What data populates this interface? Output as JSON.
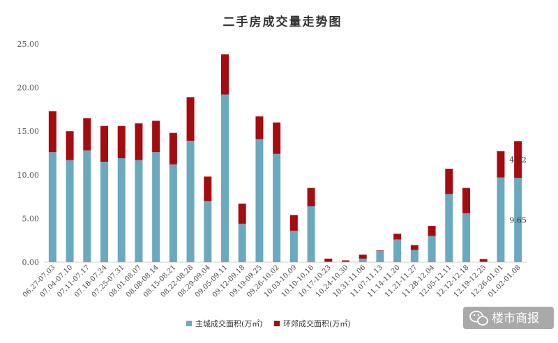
{
  "colors": {
    "main_city": "#6aa9bf",
    "suburb": "#a40c10",
    "axis": "#cccccc",
    "watermark_bg": "#a9a9a9"
  },
  "watermark": {
    "text": "楼市商报",
    "icon": "wechat-icon"
  },
  "chart_data": {
    "type": "bar",
    "stacked": true,
    "title": "二手房成交量走势图",
    "xlabel": "",
    "ylabel": "",
    "ylim": [
      0,
      25
    ],
    "yticks": [
      "0.00",
      "5.00",
      "10.00",
      "15.00",
      "20.00",
      "25.00"
    ],
    "grid": false,
    "legend_position": "bottom-center",
    "categories": [
      "06.27-07.03",
      "07.04-07.10",
      "07.11-07.17",
      "07.18-07.24",
      "07.25-07.31",
      "08.01-08.07",
      "08.08-08.14",
      "08.15-08.21",
      "08.22-08.28",
      "08.29-09.04",
      "09.05-09.11",
      "09.12-09.18",
      "09.19-09.25",
      "09.26-10.02",
      "10.03-10.09",
      "10.10-10.16",
      "10.17-10.23",
      "10.24-10.30",
      "10.31-11.06",
      "11.07-11.13",
      "11.14-11.20",
      "11.21-11.27",
      "11.28-12.04",
      "12.05-12.11",
      "12.12-12.18",
      "12.19-12.25",
      "12.26-01.01",
      "01.02-01.08"
    ],
    "series": [
      {
        "name": "主城成交面积(万㎡)",
        "values": [
          12.6,
          11.7,
          12.8,
          11.5,
          11.9,
          11.7,
          12.6,
          11.2,
          13.9,
          7.0,
          19.2,
          4.4,
          14.1,
          12.4,
          3.6,
          6.4,
          0.05,
          0.05,
          0.4,
          1.3,
          2.6,
          1.4,
          3.0,
          7.8,
          5.6,
          0.05,
          9.7,
          9.65
        ]
      },
      {
        "name": "环郊成交面积(万㎡)",
        "values": [
          4.7,
          3.3,
          3.7,
          4.1,
          3.7,
          4.2,
          3.6,
          3.6,
          5.0,
          2.8,
          4.6,
          2.3,
          2.6,
          3.6,
          1.8,
          2.1,
          0.35,
          0.15,
          0.45,
          0.05,
          0.65,
          0.55,
          1.15,
          2.9,
          2.9,
          0.3,
          3.0,
          4.22
        ]
      }
    ],
    "data_labels": [
      {
        "category": "01.02-01.08",
        "series": 0,
        "text": "9.65"
      },
      {
        "category": "01.02-01.08",
        "series": 1,
        "text": "4.22"
      }
    ]
  }
}
